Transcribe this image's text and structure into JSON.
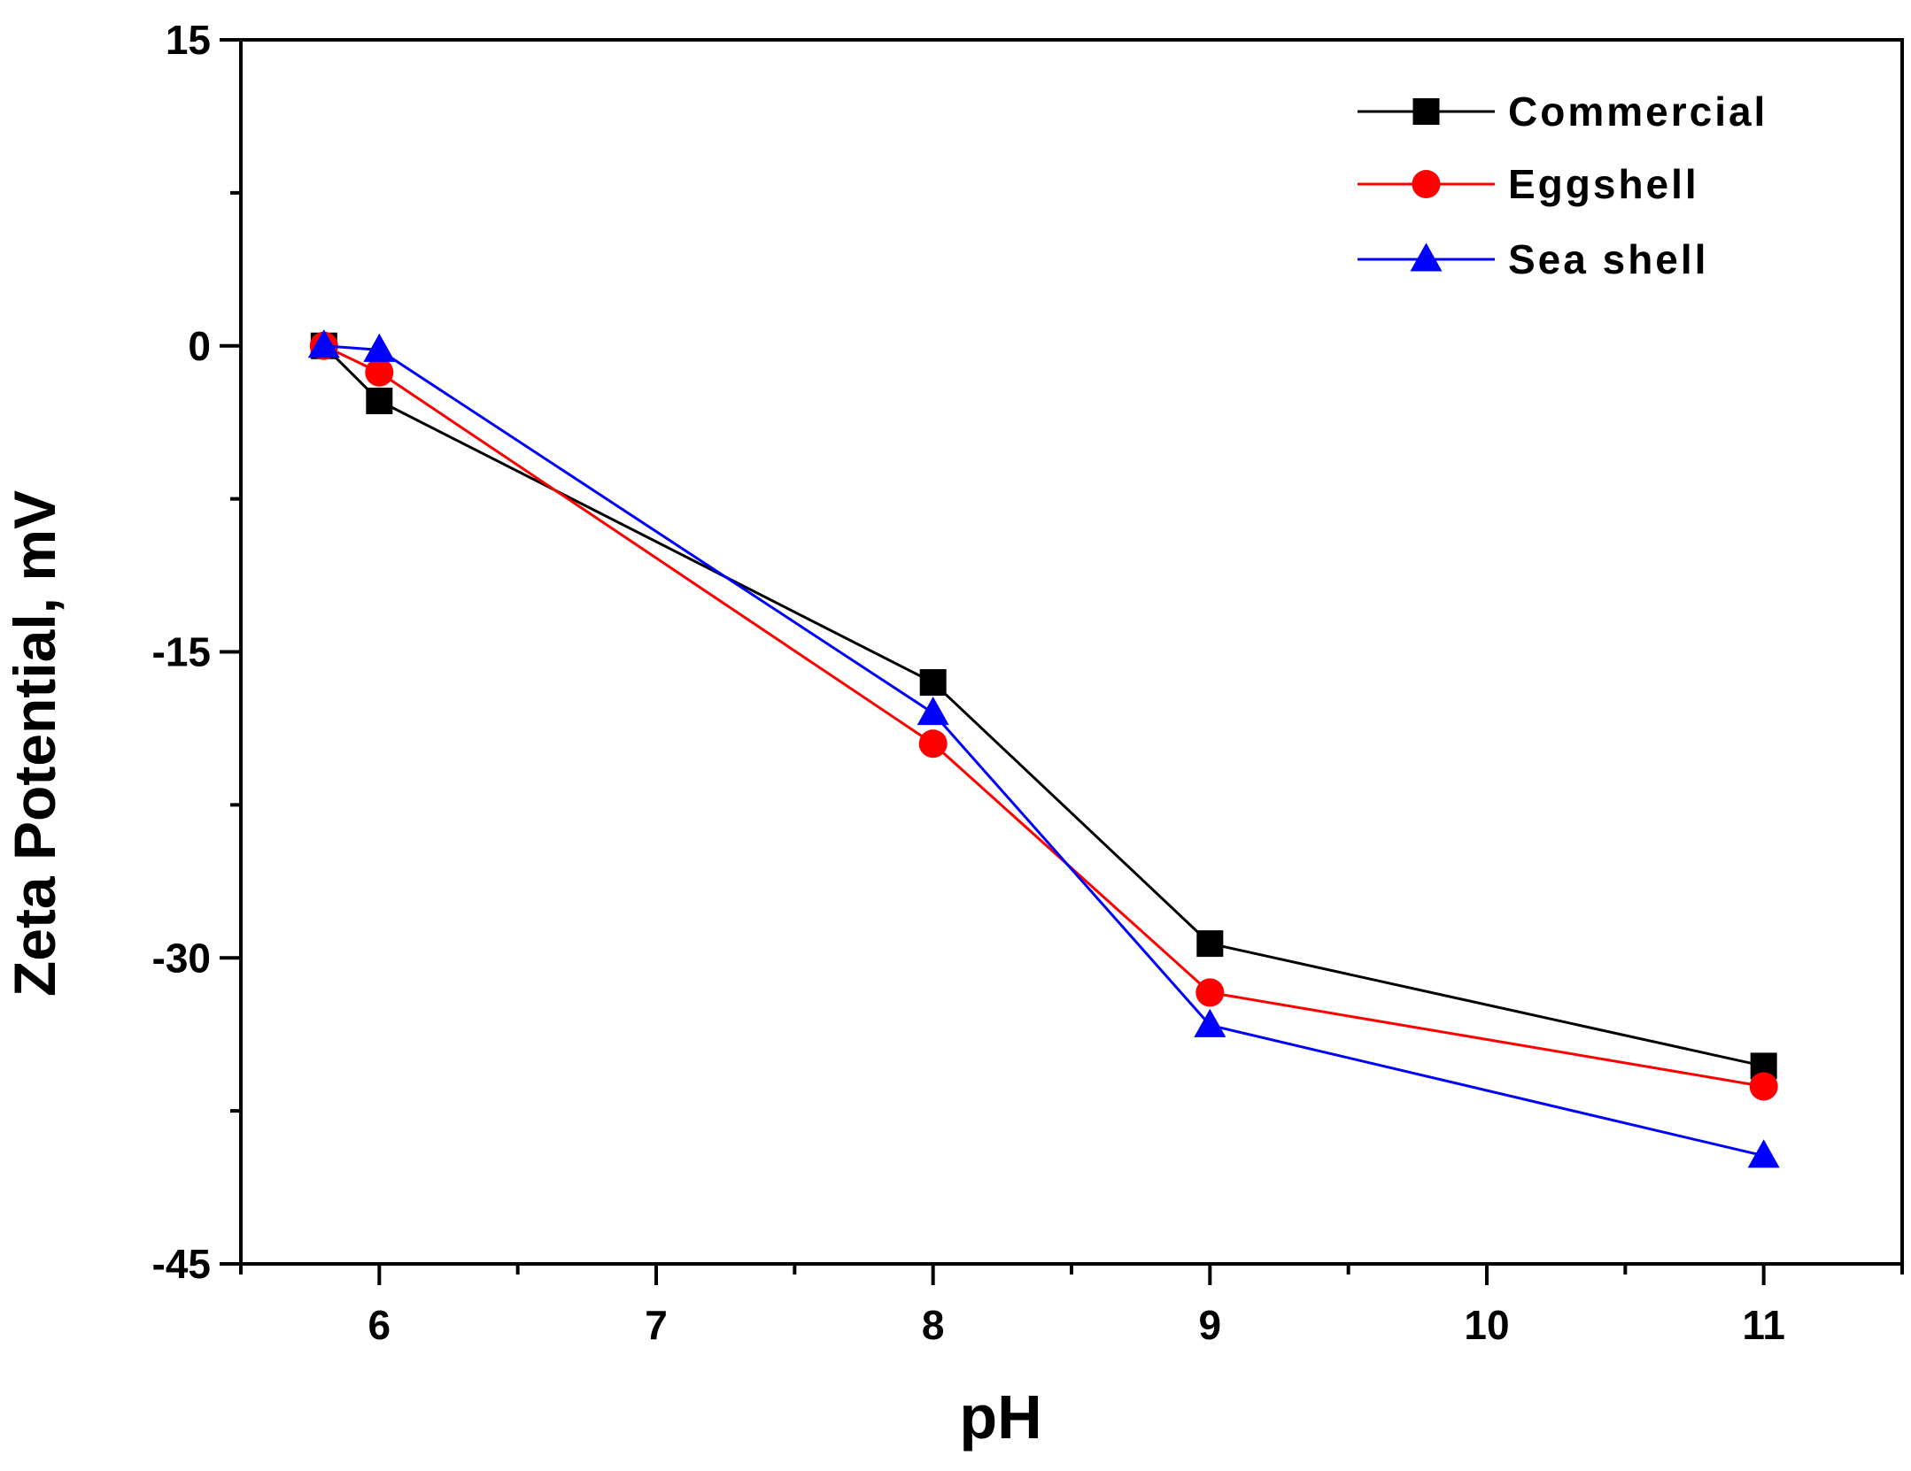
{
  "chart_data": {
    "type": "line",
    "title": "",
    "xlabel": "pH",
    "ylabel": "Zeta Potential, mV",
    "xlim": [
      5.5,
      11.5
    ],
    "ylim": [
      -45,
      15
    ],
    "xticks": [
      6,
      7,
      8,
      9,
      10,
      11
    ],
    "xtick_labels": [
      "6",
      "7",
      "8",
      "9",
      "10",
      "11"
    ],
    "yticks": [
      15,
      0,
      -15,
      -30,
      -45
    ],
    "ytick_labels": [
      "15",
      "0",
      "-15",
      "-30",
      "-45"
    ],
    "legend_position": "top-right",
    "grid": false,
    "series": [
      {
        "name": "Commercial",
        "color": "#000000",
        "marker": "square",
        "x": [
          5.8,
          6,
          8,
          9,
          11
        ],
        "values": [
          0,
          -2.7,
          -16.5,
          -29.3,
          -35.3
        ]
      },
      {
        "name": "Eggshell",
        "color": "#ff0000",
        "marker": "circle",
        "x": [
          5.8,
          6,
          8,
          9,
          11
        ],
        "values": [
          0,
          -1.3,
          -19.5,
          -31.7,
          -36.3
        ]
      },
      {
        "name": "Sea shell",
        "color": "#0000ff",
        "marker": "triangle",
        "x": [
          5.8,
          6,
          8,
          9,
          11
        ],
        "values": [
          0,
          -0.2,
          -18,
          -33.3,
          -39.7
        ]
      }
    ]
  }
}
